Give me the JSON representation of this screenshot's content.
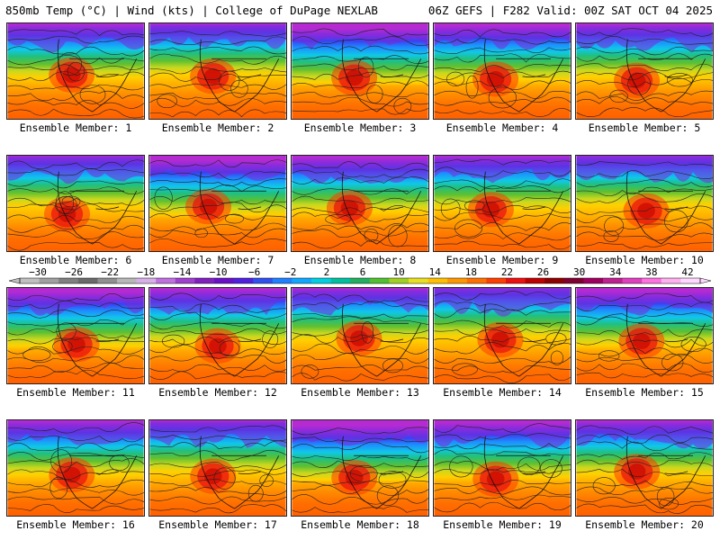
{
  "header": {
    "left_title": "850mb Temp (°C) | Wind (kts) | College of DuPage NEXLAB",
    "right_title": "06Z GEFS | F282 Valid: 00Z SAT OCT 04 2025"
  },
  "members": [
    {
      "label": "Ensemble Member: 1"
    },
    {
      "label": "Ensemble Member: 2"
    },
    {
      "label": "Ensemble Member: 3"
    },
    {
      "label": "Ensemble Member: 4"
    },
    {
      "label": "Ensemble Member: 5"
    },
    {
      "label": "Ensemble Member: 6"
    },
    {
      "label": "Ensemble Member: 7"
    },
    {
      "label": "Ensemble Member: 8"
    },
    {
      "label": "Ensemble Member: 9"
    },
    {
      "label": "Ensemble Member: 10"
    },
    {
      "label": "Ensemble Member: 11"
    },
    {
      "label": "Ensemble Member: 12"
    },
    {
      "label": "Ensemble Member: 13"
    },
    {
      "label": "Ensemble Member: 14"
    },
    {
      "label": "Ensemble Member: 15"
    },
    {
      "label": "Ensemble Member: 16"
    },
    {
      "label": "Ensemble Member: 17"
    },
    {
      "label": "Ensemble Member: 18"
    },
    {
      "label": "Ensemble Member: 19"
    },
    {
      "label": "Ensemble Member: 20"
    }
  ],
  "colorbar": {
    "tick_labels": [
      "−30",
      "−26",
      "−22",
      "−18",
      "−14",
      "−10",
      "−6",
      "−2",
      "2",
      "6",
      "10",
      "14",
      "18",
      "22",
      "26",
      "30",
      "34",
      "38",
      "42"
    ],
    "colors": [
      "#c0c0c0",
      "#a0a0a0",
      "#808080",
      "#6a6a6a",
      "#909090",
      "#b8b8b8",
      "#d8b0e8",
      "#c070e0",
      "#a040d0",
      "#8020c0",
      "#6a10c8",
      "#5020e0",
      "#3050f0",
      "#2080ff",
      "#10a8ff",
      "#00d0e0",
      "#00c0a0",
      "#20b060",
      "#50c030",
      "#a0d020",
      "#e8e020",
      "#ffc000",
      "#ff9800",
      "#ff7000",
      "#ff4000",
      "#f01010",
      "#c00000",
      "#900000",
      "#800030",
      "#a00060",
      "#c02090",
      "#e040c0",
      "#ff70e0",
      "#ffb0f0",
      "#ffd8ff"
    ]
  }
}
